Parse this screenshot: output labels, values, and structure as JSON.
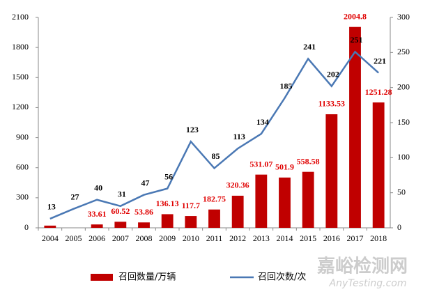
{
  "chart_data": {
    "type": "bar-line",
    "categories": [
      "2004",
      "2005",
      "2006",
      "2007",
      "2008",
      "2009",
      "2010",
      "2011",
      "2012",
      "2013",
      "2014",
      "2015",
      "2016",
      "2017",
      "2018"
    ],
    "series": [
      {
        "name": "召回数量/万辆",
        "type": "bar",
        "color": "#c00000",
        "label_color": "#e00000",
        "values": [
          22,
          0,
          33.61,
          60.52,
          53.86,
          136.13,
          117.7,
          182.75,
          320.36,
          531.07,
          501.9,
          558.58,
          1133.53,
          2004.8,
          1251.28
        ],
        "value_labels": [
          null,
          null,
          "33.61",
          "60.52",
          "53.86",
          "136.13",
          "117.7",
          "182.75",
          "320.36",
          "531.07",
          "501.9",
          "558.58",
          "1133.53",
          "2004.8",
          "1251.28"
        ]
      },
      {
        "name": "召回次数/次",
        "type": "line",
        "axis": "y2",
        "color": "#4a78b4",
        "label_color": "#000000",
        "values": [
          13,
          27,
          40,
          31,
          47,
          56,
          123,
          85,
          113,
          134,
          185,
          241,
          202,
          251,
          221
        ]
      }
    ],
    "ylim": [
      0,
      2100
    ],
    "yticks": [
      0,
      300,
      600,
      900,
      1200,
      1500,
      1800,
      2100
    ],
    "y2lim": [
      0,
      300
    ],
    "y2ticks": [
      0,
      50,
      100,
      150,
      200,
      250,
      300
    ],
    "legend": "bottom",
    "watermark": {
      "title": "嘉峪检测网",
      "url": "AnyTesting.com"
    }
  }
}
